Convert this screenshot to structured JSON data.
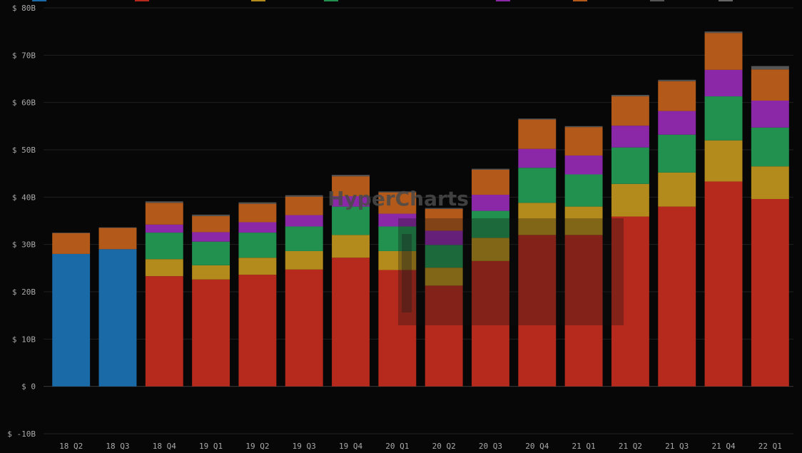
{
  "chart_data": {
    "type": "bar",
    "stacked": true,
    "watermark": "HyperCharts",
    "categories": [
      "18 Q2",
      "18 Q3",
      "18 Q4",
      "19 Q1",
      "19 Q2",
      "19 Q3",
      "19 Q4",
      "20 Q1",
      "20 Q2",
      "20 Q3",
      "20 Q4",
      "21 Q1",
      "21 Q2",
      "21 Q3",
      "21 Q4",
      "22 Q1"
    ],
    "y_tick_labels": [
      "$ -10B",
      "$ 0",
      "$ 10B",
      "$ 20B",
      "$ 30B",
      "$ 40B",
      "$ 50B",
      "$ 60B",
      "$ 70B",
      "$ 80B"
    ],
    "y_ticks": [
      -10,
      0,
      10,
      20,
      30,
      40,
      50,
      60,
      70,
      80
    ],
    "ylim": [
      -10,
      80
    ],
    "units": "B",
    "grid": true,
    "legend_position": "top",
    "series": [
      {
        "color": "#1a6aa8",
        "values": [
          28,
          29,
          0,
          0,
          0,
          0,
          0,
          0,
          0,
          0,
          0,
          0,
          0,
          0,
          0,
          0
        ]
      },
      {
        "color": "#b52a1c",
        "values": [
          0,
          0,
          23.3,
          22.6,
          23.6,
          24.7,
          27.2,
          24.6,
          21.3,
          26.5,
          32.0,
          32.0,
          35.9,
          38.0,
          43.3,
          39.6
        ]
      },
      {
        "color": "#b38b1c",
        "values": [
          0,
          0,
          3.6,
          3.0,
          3.6,
          3.9,
          4.8,
          4.0,
          3.8,
          4.9,
          6.8,
          6.0,
          6.9,
          7.2,
          8.7,
          6.9
        ]
      },
      {
        "color": "#229150",
        "values": [
          0,
          0,
          5.6,
          5.0,
          5.3,
          5.2,
          6.0,
          5.2,
          4.8,
          5.7,
          7.4,
          6.8,
          7.7,
          8.0,
          9.3,
          8.2
        ]
      },
      {
        "color": "#8b28a8",
        "values": [
          0,
          0,
          1.7,
          2.0,
          2.2,
          2.4,
          2.2,
          2.7,
          3.0,
          3.4,
          4.0,
          4.0,
          4.6,
          5.0,
          5.6,
          5.7
        ]
      },
      {
        "color": "#b35a1b",
        "values": [
          4.4,
          4.5,
          4.6,
          3.4,
          3.9,
          3.9,
          4.2,
          4.5,
          4.6,
          5.3,
          6.2,
          6.0,
          6.2,
          6.3,
          7.8,
          6.6
        ]
      },
      {
        "color": "#555555",
        "values": [
          0.1,
          0.1,
          0.3,
          0.3,
          0.3,
          0.3,
          0.3,
          0.2,
          0.2,
          0.2,
          0.2,
          0.2,
          0.3,
          0.3,
          0.3,
          0.7
        ]
      }
    ]
  }
}
